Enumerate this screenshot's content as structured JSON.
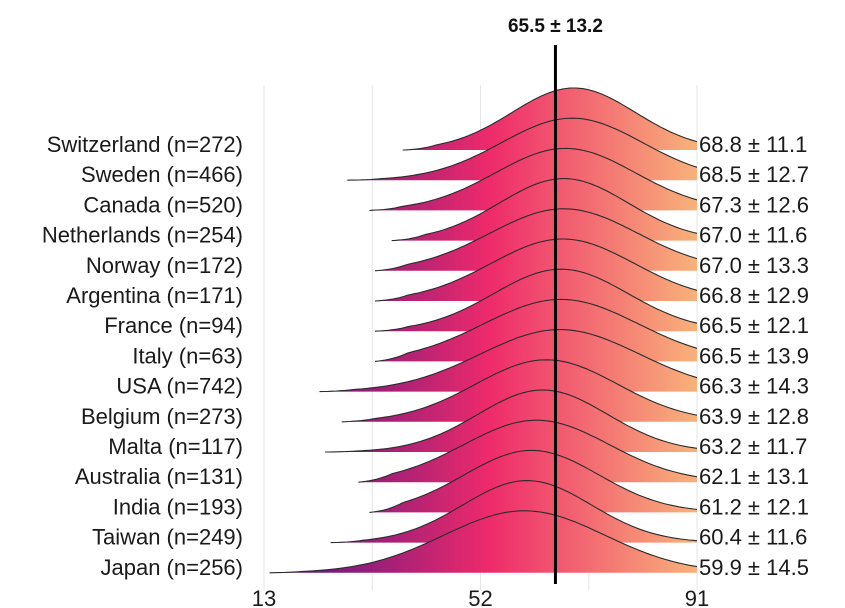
{
  "chart_data": {
    "type": "ridgeline",
    "title": "65.5 ± 13.2",
    "overall_mean": 65.5,
    "overall_sd": 13.2,
    "xlim": [
      13,
      91
    ],
    "x_ticks": [
      "13",
      "52",
      "91"
    ],
    "colors": {
      "low": "#4a1486",
      "mid": "#ee2a6b",
      "high": "#f8b27a"
    },
    "series": [
      {
        "country": "Switzerland (n=272)",
        "stat": "68.8 ± 11.1",
        "mean": 68.8,
        "sd": 11.1,
        "min": 38,
        "max": 91
      },
      {
        "country": "Sweden (n=466)",
        "stat": "68.5 ± 12.7",
        "mean": 68.5,
        "sd": 12.7,
        "min": 28,
        "max": 91
      },
      {
        "country": "Canada (n=520)",
        "stat": "67.3 ± 12.6",
        "mean": 67.3,
        "sd": 12.6,
        "min": 32,
        "max": 91
      },
      {
        "country": "Netherlands (n=254)",
        "stat": "67.0 ± 11.6",
        "mean": 67.0,
        "sd": 11.6,
        "min": 36,
        "max": 91
      },
      {
        "country": "Norway (n=172)",
        "stat": "67.0 ± 13.3",
        "mean": 67.0,
        "sd": 13.3,
        "min": 33,
        "max": 91
      },
      {
        "country": "Argentina (n=171)",
        "stat": "66.8 ± 12.9",
        "mean": 66.8,
        "sd": 12.9,
        "min": 33,
        "max": 91
      },
      {
        "country": "France (n=94)",
        "stat": "66.5 ± 12.1",
        "mean": 66.5,
        "sd": 12.1,
        "min": 33,
        "max": 91
      },
      {
        "country": "Italy (n=63)",
        "stat": "66.5 ± 13.9",
        "mean": 66.5,
        "sd": 13.9,
        "min": 33,
        "max": 91
      },
      {
        "country": "USA (n=742)",
        "stat": "66.3 ± 14.3",
        "mean": 66.3,
        "sd": 14.3,
        "min": 23,
        "max": 91
      },
      {
        "country": "Belgium (n=273)",
        "stat": "63.9 ± 12.8",
        "mean": 63.9,
        "sd": 12.8,
        "min": 27,
        "max": 91
      },
      {
        "country": "Malta (n=117)",
        "stat": "63.2 ± 11.7",
        "mean": 63.2,
        "sd": 11.7,
        "min": 24,
        "max": 91
      },
      {
        "country": "Australia (n=131)",
        "stat": "62.1 ± 13.1",
        "mean": 62.1,
        "sd": 13.1,
        "min": 30,
        "max": 91
      },
      {
        "country": "India (n=193)",
        "stat": "61.2 ± 12.1",
        "mean": 61.2,
        "sd": 12.1,
        "min": 32,
        "max": 91
      },
      {
        "country": "Taiwan (n=249)",
        "stat": "60.4 ± 11.6",
        "mean": 60.4,
        "sd": 11.6,
        "min": 25,
        "max": 91
      },
      {
        "country": "Japan (n=256)",
        "stat": "59.9 ± 14.5",
        "mean": 59.9,
        "sd": 14.5,
        "min": 14,
        "max": 91
      }
    ]
  }
}
